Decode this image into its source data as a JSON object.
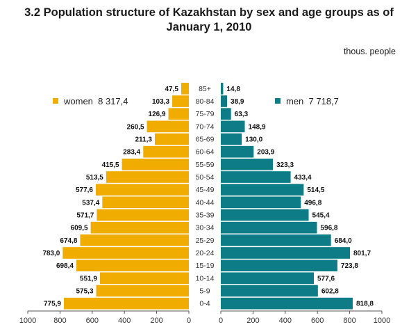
{
  "chart_data": {
    "type": "bar",
    "orientation": "horizontal",
    "subtype": "population-pyramid",
    "title_line1": "3.2  Population structure of Kazakhstan by sex and age groups as of",
    "title_line2": "January 1, 2010",
    "unit_label": "thous. people",
    "categories": [
      "85+",
      "80-84",
      "75-79",
      "70-74",
      "65-69",
      "60-64",
      "55-59",
      "50-54",
      "45-49",
      "40-44",
      "35-39",
      "30-34",
      "25-29",
      "20-24",
      "15-19",
      "10-14",
      "5-9",
      "0-4"
    ],
    "series": [
      {
        "name": "women",
        "total_label": "8 317,4",
        "side": "left",
        "color": "#F0AD00",
        "values": [
          47.5,
          103.3,
          126.9,
          260.5,
          211.3,
          283.4,
          415.5,
          513.5,
          577.6,
          537.4,
          571.7,
          609.5,
          674.8,
          783.0,
          698.4,
          551.9,
          575.3,
          775.9
        ],
        "value_labels": [
          "47,5",
          "103,3",
          "126,9",
          "260,5",
          "211,3",
          "283,4",
          "415,5",
          "513,5",
          "577,6",
          "537,4",
          "571,7",
          "609,5",
          "674,8",
          "783,0",
          "698,4",
          "551,9",
          "575,3",
          "775,9"
        ]
      },
      {
        "name": "men",
        "total_label": "7 718,7",
        "side": "right",
        "color": "#0E7C86",
        "values": [
          14.8,
          38.9,
          63.3,
          148.9,
          130.0,
          203.9,
          323.3,
          433.4,
          514.5,
          496.8,
          545.4,
          596.8,
          684.0,
          801.7,
          723.8,
          577.6,
          602.8,
          818.8
        ],
        "value_labels": [
          "14,8",
          "38,9",
          "63,3",
          "148,9",
          "130,0",
          "203,9",
          "323,3",
          "433,4",
          "514,5",
          "496,8",
          "545,4",
          "596,8",
          "684,0",
          "801,7",
          "723,8",
          "577,6",
          "602,8",
          "818,8"
        ]
      }
    ],
    "xlim": [
      0,
      1000
    ],
    "left_ticks": [
      "1000",
      "800",
      "600",
      "400",
      "200",
      "0"
    ],
    "right_ticks": [
      "0",
      "200",
      "400",
      "600",
      "800",
      "1000"
    ],
    "tick_values": [
      0,
      200,
      400,
      600,
      800,
      1000
    ],
    "grid": false,
    "legend": [
      {
        "label": "women  8 317,4",
        "placement": "upper-left"
      },
      {
        "label": "men  7 718,7",
        "placement": "upper-right"
      }
    ]
  }
}
